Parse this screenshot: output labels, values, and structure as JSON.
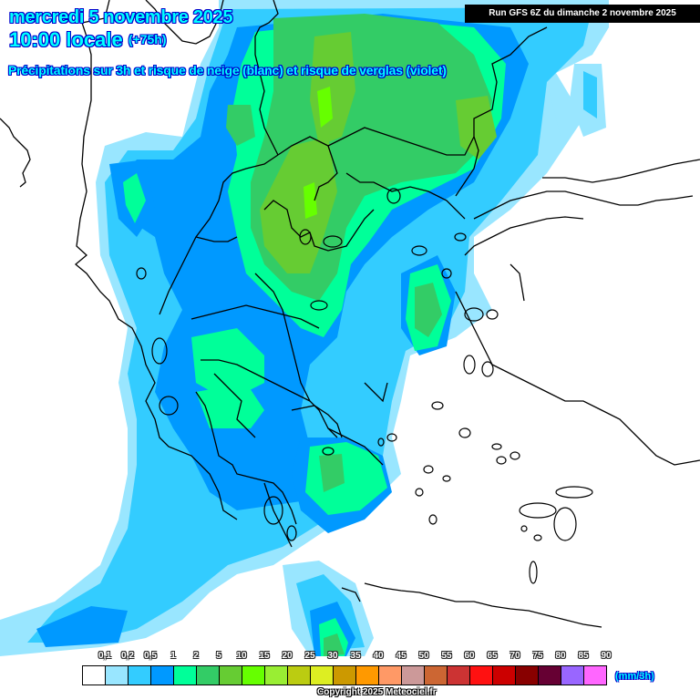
{
  "header": {
    "date": "mercredi 5 novembre 2025",
    "time": "10:00 locale",
    "lead": "(+75h)",
    "description": "Précipitations sur 3h et risque de neige (blanc) et risque de verglas (violet)",
    "run": "Run GFS 6Z du dimanche 2 novembre 2025"
  },
  "legend": {
    "units": "(mm/3h)",
    "labels": [
      "0,1",
      "0,2",
      "0,5",
      "1",
      "2",
      "5",
      "10",
      "15",
      "20",
      "25",
      "30",
      "35",
      "40",
      "45",
      "50",
      "55",
      "60",
      "65",
      "70",
      "75",
      "80",
      "85",
      "90"
    ],
    "colors": [
      "#ffffff",
      "#99e6ff",
      "#33ccff",
      "#0099ff",
      "#00ff99",
      "#33cc66",
      "#66cc33",
      "#66ff00",
      "#99ee33",
      "#bbcc11",
      "#ddee22",
      "#cc9900",
      "#ff9900",
      "#ff9966",
      "#cc9999",
      "#cc6633",
      "#cc3333",
      "#ff1111",
      "#cc0000",
      "#880000",
      "#660033",
      "#9966ff",
      "#ff66ff"
    ]
  },
  "copyright": "Copyright 2025 Meteociel.fr",
  "map": {
    "region": "Greece / Balkans / Aegean",
    "precip_colors": {
      "p01": "#99e6ff",
      "p02": "#33ccff",
      "p05": "#0099ff",
      "p1": "#00ff99",
      "p2": "#33cc66",
      "p5": "#66cc33",
      "p10": "#66ff00"
    }
  }
}
